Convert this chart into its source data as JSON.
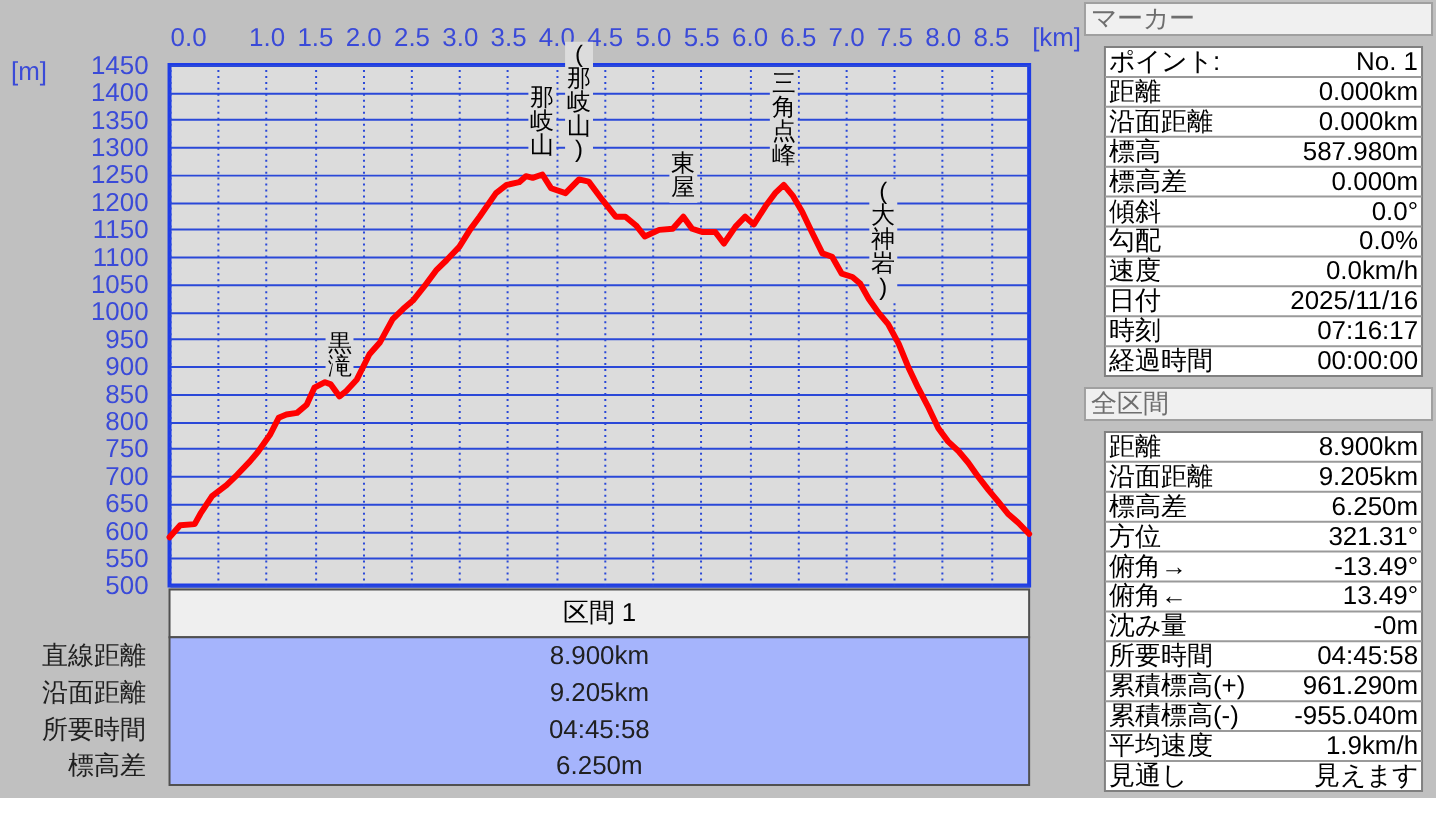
{
  "chart_data": [
    {
      "type": "line",
      "xlabel": "[km]",
      "ylabel": "[m]",
      "x": [
        0,
        0.11,
        0.26,
        0.32,
        0.44,
        0.59,
        0.7,
        0.83,
        0.92,
        1.04,
        1.13,
        1.21,
        1.32,
        1.42,
        1.5,
        1.61,
        1.67,
        1.76,
        1.83,
        1.94,
        2.07,
        2.18,
        2.31,
        2.42,
        2.52,
        2.66,
        2.76,
        2.87,
        3.0,
        3.11,
        3.21,
        3.38,
        3.49,
        3.62,
        3.69,
        3.76,
        3.86,
        3.95,
        4.1,
        4.24,
        4.34,
        4.48,
        4.62,
        4.72,
        4.83,
        4.92,
        5.07,
        5.21,
        5.32,
        5.41,
        5.52,
        5.65,
        5.74,
        5.86,
        5.96,
        6.05,
        6.17,
        6.27,
        6.36,
        6.45,
        6.55,
        6.65,
        6.76,
        6.86,
        6.96,
        7.07,
        7.15,
        7.24,
        7.34,
        7.44,
        7.55,
        7.65,
        7.75,
        7.86,
        7.96,
        8.06,
        8.17,
        8.27,
        8.37,
        8.48,
        8.58,
        8.68,
        8.79,
        8.9
      ],
      "series": [
        {
          "color": "#ff0000",
          "values": [
            588,
            610,
            612,
            631,
            663,
            683,
            702,
            726,
            745,
            775,
            806,
            812,
            815,
            830,
            861,
            871,
            867,
            845,
            855,
            876,
            922,
            944,
            986,
            1005,
            1020,
            1051,
            1075,
            1094,
            1118,
            1149,
            1173,
            1216,
            1231,
            1236,
            1247,
            1244,
            1250,
            1225,
            1216,
            1241,
            1237,
            1204,
            1173,
            1173,
            1157,
            1137,
            1149,
            1151,
            1173,
            1151,
            1145,
            1145,
            1124,
            1155,
            1173,
            1159,
            1192,
            1216,
            1231,
            1212,
            1182,
            1145,
            1106,
            1100,
            1069,
            1063,
            1051,
            1023,
            998,
            977,
            941,
            898,
            861,
            824,
            787,
            763,
            745,
            724,
            699,
            674,
            653,
            631,
            614,
            594
          ]
        }
      ],
      "xlim": [
        0,
        8.9
      ],
      "xticks": [
        {
          "value": 0,
          "label": "0.0"
        },
        {
          "value": 0.5,
          "label": null
        },
        {
          "value": 1,
          "label": "1.0"
        },
        1.5,
        {
          "value": 2,
          "label": "2.0"
        },
        2.5,
        {
          "value": 3,
          "label": "3.0"
        },
        3.5,
        {
          "value": 4,
          "label": "4.0"
        },
        4.5,
        {
          "value": 5,
          "label": "5.0"
        },
        5.5,
        {
          "value": 6,
          "label": "6.0"
        },
        6.5,
        {
          "value": 7,
          "label": "7.0"
        },
        7.5,
        {
          "value": 8,
          "label": "8.0"
        },
        8.5
      ],
      "ylim": [
        500,
        1450
      ],
      "yticks": [
        500,
        550,
        600,
        650,
        700,
        750,
        800,
        850,
        900,
        950,
        1000,
        1050,
        1100,
        1150,
        1200,
        1250,
        1300,
        1350,
        1400,
        1450
      ],
      "grid": true,
      "annotations": [
        {
          "text": "黒滝",
          "x": 1.76,
          "y": 845
        },
        {
          "text": "那岐山",
          "x": 3.86,
          "y": 1250
        },
        {
          "text": "(那岐山)",
          "x": 4.24,
          "y": 1241
        },
        {
          "text": "東屋",
          "x": 5.32,
          "y": 1173
        },
        {
          "text": "三角点峰",
          "x": 6.36,
          "y": 1231
        },
        {
          "text": "(大神岩)",
          "x": 7.39,
          "y": 990
        }
      ]
    },
    {
      "type": "other",
      "title": "区間 1",
      "annotations": [
        "直線距離",
        "8.900km",
        "沿面距離",
        "9.205km",
        "所要時間",
        "04:45:58",
        "標高差",
        "6.250m"
      ]
    },
    {
      "type": "other",
      "title": "マーカー",
      "annotations": [
        "ポイント:",
        "No. 1",
        "距離",
        "0.000km",
        "沿面距離",
        "0.000km",
        "標高",
        "587.980m",
        "標高差",
        "0.000m",
        "傾斜",
        "0.0°",
        "勾配",
        "0.0%",
        "速度",
        "0.0km/h",
        "日付",
        "2025/11/16",
        "時刻",
        "07:16:17",
        "経過時間",
        "00:00:00"
      ]
    },
    {
      "type": "other",
      "title": "全区間",
      "annotations": [
        "距離",
        "8.900km",
        "沿面距離",
        "9.205km",
        "標高差",
        "6.250m",
        "方位",
        "321.31°",
        "俯角→",
        "-13.49°",
        "俯角←",
        "13.49°",
        "沈み量",
        "-0m",
        "所要時間",
        "04:45:58",
        "累積標高(+)",
        "961.290m",
        "累積標高(-)",
        "-955.040m",
        "平均速度",
        "1.9km/h",
        "見通し",
        "見えます"
      ]
    }
  ]
}
